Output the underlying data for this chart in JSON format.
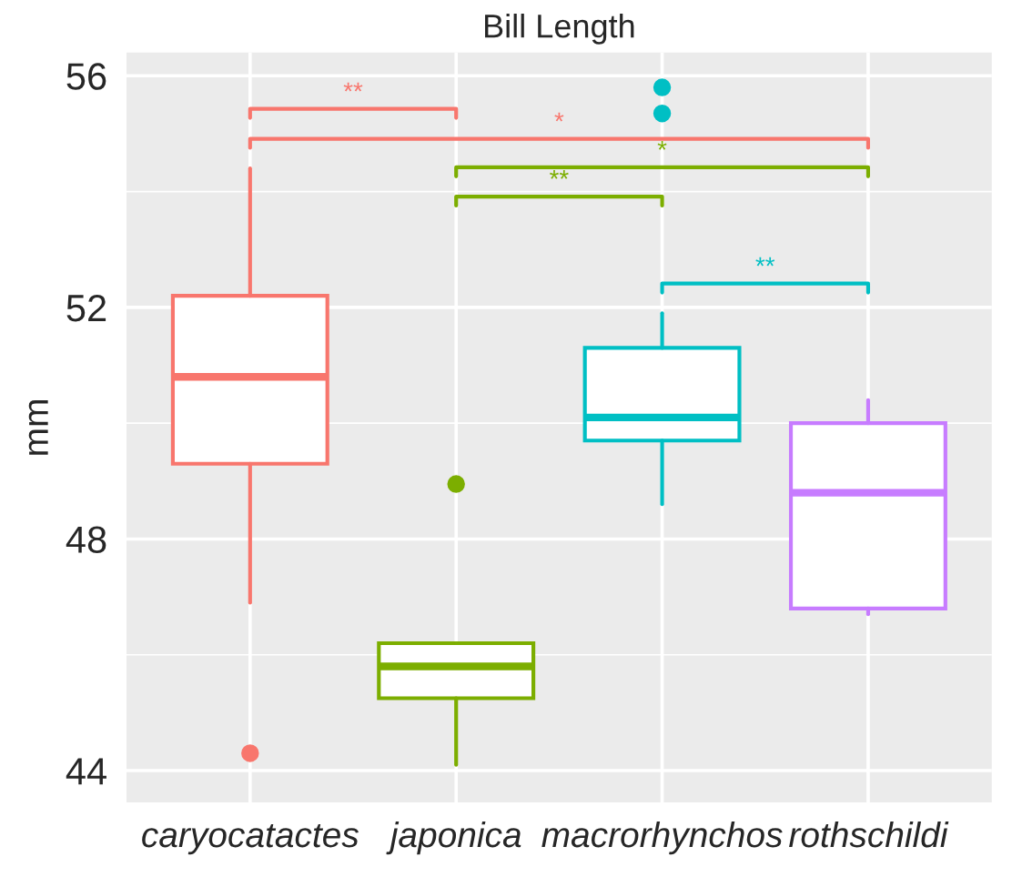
{
  "chart_data": {
    "type": "box",
    "title": "Bill Length",
    "ylabel": "mm",
    "categories": [
      "caryocatactes",
      "japonica",
      "macrorhynchos",
      "rothschildi"
    ],
    "colors": [
      "#f8766d",
      "#7cae00",
      "#00bfc4",
      "#c77cff"
    ],
    "boxes": [
      {
        "low": 46.9,
        "q1": 49.3,
        "median": 50.8,
        "q3": 52.2,
        "high": 54.4,
        "outliers": [
          44.3
        ]
      },
      {
        "low": 44.1,
        "q1": 45.25,
        "median": 45.8,
        "q3": 46.2,
        "high": 46.2,
        "outliers": [
          48.95
        ]
      },
      {
        "low": 48.6,
        "q1": 49.7,
        "median": 50.1,
        "q3": 51.3,
        "high": 51.9,
        "outliers": [
          55.35,
          55.8
        ]
      },
      {
        "low": 46.7,
        "q1": 46.8,
        "median": 48.8,
        "q3": 50.0,
        "high": 50.4
      }
    ],
    "ylim": [
      43.45,
      56.4
    ],
    "yticks": [
      44,
      48,
      52,
      56
    ],
    "grid": true,
    "annotations": [
      "**",
      "*",
      "*",
      "**",
      "**"
    ]
  }
}
